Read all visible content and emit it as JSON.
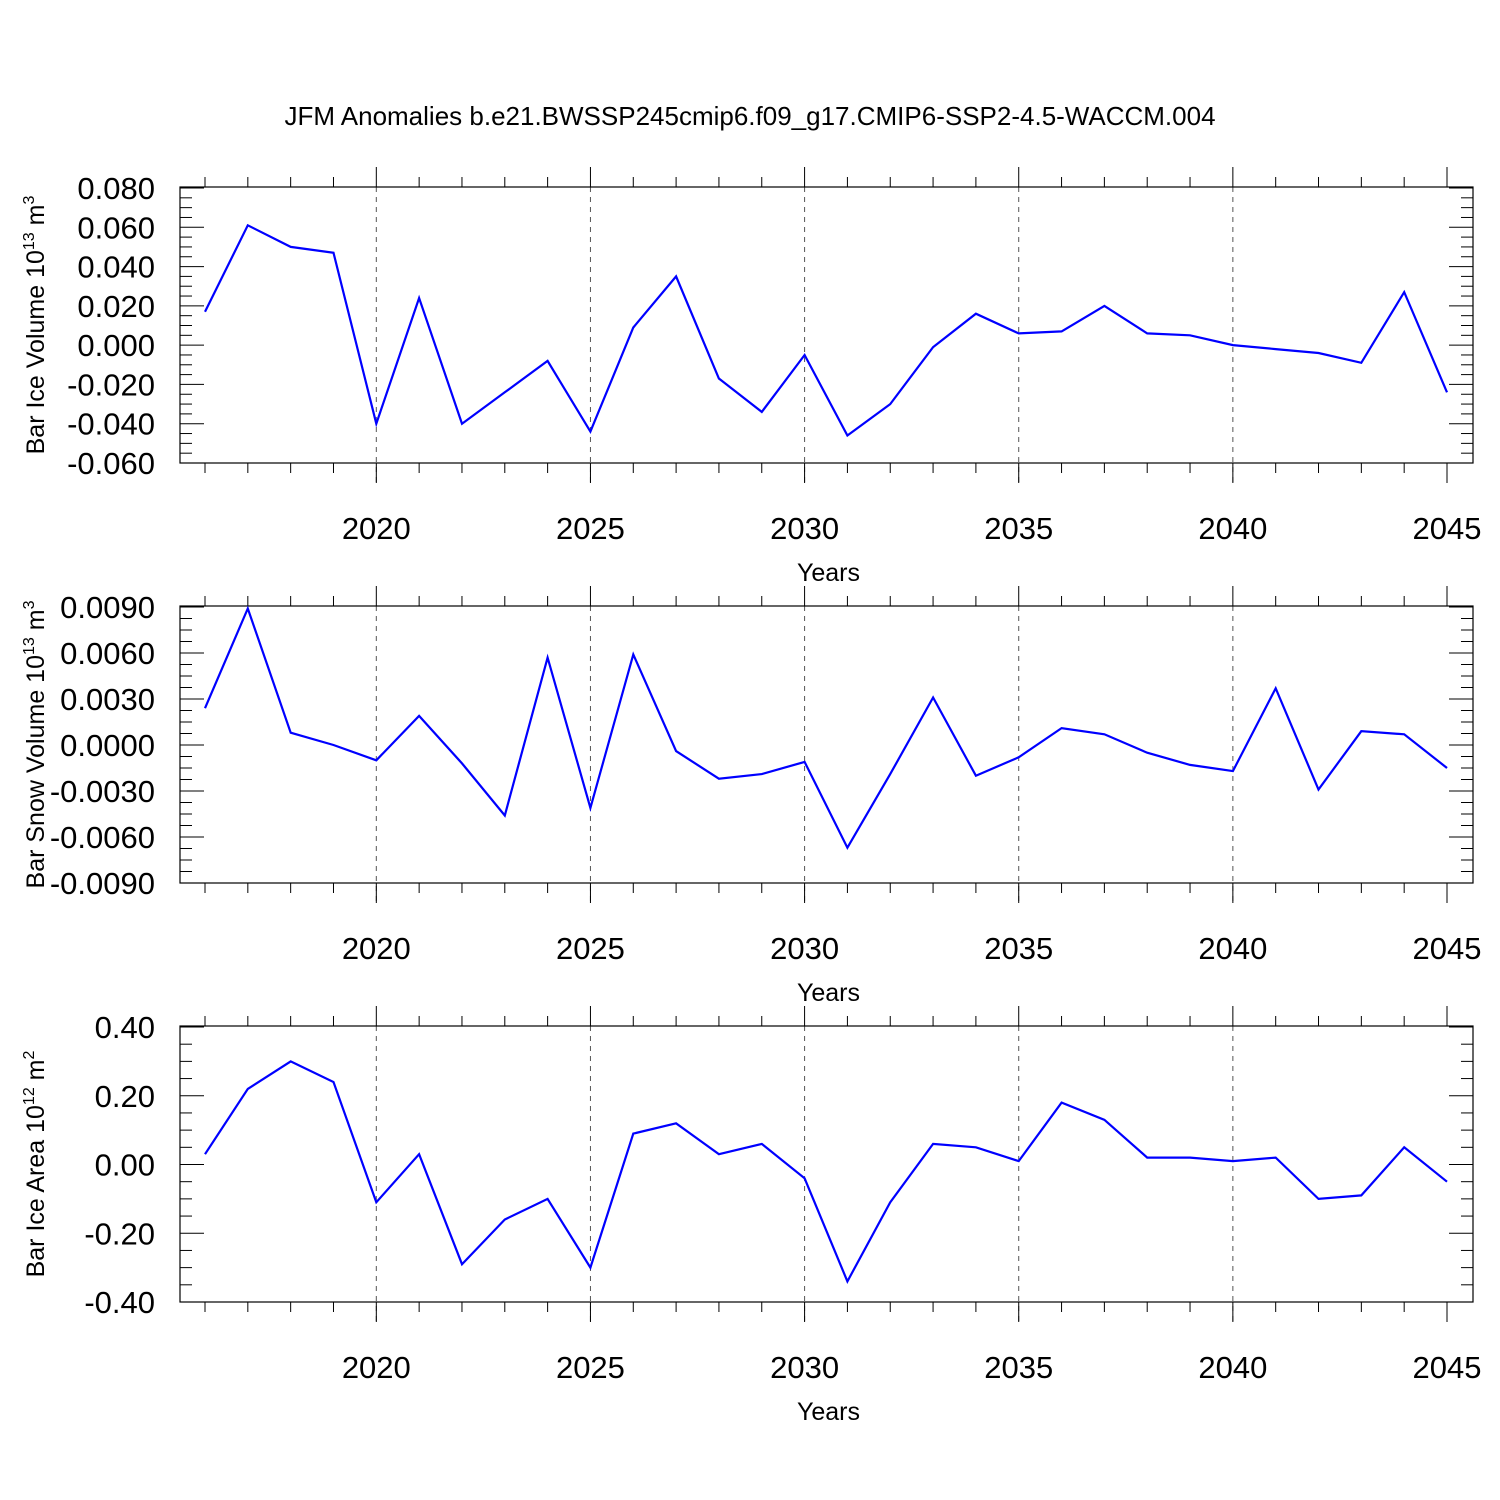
{
  "title": "JFM Anomalies b.e21.BWSSP245cmip6.f09_g17.CMIP6-SSP2-4.5-WACCM.004",
  "line_color": "#0000ff",
  "chart_data": [
    {
      "type": "line",
      "ylabel_main": "Bar Ice Volume 10",
      "ylabel_exp": "13",
      "ylabel_unit": "m",
      "ylabel_unit_exp": "3",
      "xlabel": "Years",
      "xlim": [
        2016,
        2045
      ],
      "ylim": [
        -0.06,
        0.08
      ],
      "grid": "x-dashed",
      "xticks": [
        "2020",
        "2025",
        "2030",
        "2035",
        "2040",
        "2045"
      ],
      "yticks": [
        "0.080",
        "0.060",
        "0.040",
        "0.020",
        "0.000",
        "-0.020",
        "-0.040",
        "-0.060"
      ],
      "x": [
        2016,
        2017,
        2018,
        2019,
        2020,
        2021,
        2022,
        2023,
        2024,
        2025,
        2026,
        2027,
        2028,
        2029,
        2030,
        2031,
        2032,
        2033,
        2034,
        2035,
        2036,
        2037,
        2038,
        2039,
        2040,
        2041,
        2042,
        2043,
        2044,
        2045
      ],
      "values": [
        0.017,
        0.061,
        0.05,
        0.047,
        -0.04,
        0.024,
        -0.04,
        -0.024,
        -0.008,
        -0.044,
        0.009,
        0.035,
        -0.017,
        -0.034,
        -0.005,
        -0.046,
        -0.03,
        -0.001,
        0.016,
        0.006,
        0.007,
        0.02,
        0.006,
        0.005,
        0.0,
        -0.002,
        -0.004,
        -0.009,
        0.027,
        -0.024
      ]
    },
    {
      "type": "line",
      "ylabel_main": "Bar Snow Volume 10",
      "ylabel_exp": "13",
      "ylabel_unit": "m",
      "ylabel_unit_exp": "3",
      "xlabel": "Years",
      "xlim": [
        2016,
        2045
      ],
      "ylim": [
        -0.009,
        0.009
      ],
      "grid": "x-dashed",
      "xticks": [
        "2020",
        "2025",
        "2030",
        "2035",
        "2040",
        "2045"
      ],
      "yticks": [
        "0.0090",
        "0.0060",
        "0.0030",
        "0.0000",
        "-0.0030",
        "-0.0060",
        "-0.0090"
      ],
      "x": [
        2016,
        2017,
        2018,
        2019,
        2020,
        2021,
        2022,
        2023,
        2024,
        2025,
        2026,
        2027,
        2028,
        2029,
        2030,
        2031,
        2032,
        2033,
        2034,
        2035,
        2036,
        2037,
        2038,
        2039,
        2040,
        2041,
        2042,
        2043,
        2044,
        2045
      ],
      "values": [
        0.0024,
        0.0089,
        0.0008,
        0.0,
        -0.001,
        0.0019,
        -0.0012,
        -0.0046,
        0.0057,
        -0.0041,
        0.0059,
        -0.0004,
        -0.0022,
        -0.0019,
        -0.0011,
        -0.0067,
        -0.0019,
        0.0031,
        -0.002,
        -0.0008,
        0.0011,
        0.0007,
        -0.0005,
        -0.0013,
        -0.0017,
        0.0037,
        -0.0029,
        0.0009,
        0.0007,
        -0.0015
      ]
    },
    {
      "type": "line",
      "ylabel_main": "Bar Ice Area 10",
      "ylabel_exp": "12",
      "ylabel_unit": "m",
      "ylabel_unit_exp": "2",
      "xlabel": "Years",
      "xlim": [
        2016,
        2045
      ],
      "ylim": [
        -0.4,
        0.4
      ],
      "grid": "x-dashed",
      "xticks": [
        "2020",
        "2025",
        "2030",
        "2035",
        "2040",
        "2045"
      ],
      "yticks": [
        "0.40",
        "0.20",
        "0.00",
        "-0.20",
        "-0.40"
      ],
      "x": [
        2016,
        2017,
        2018,
        2019,
        2020,
        2021,
        2022,
        2023,
        2024,
        2025,
        2026,
        2027,
        2028,
        2029,
        2030,
        2031,
        2032,
        2033,
        2034,
        2035,
        2036,
        2037,
        2038,
        2039,
        2040,
        2041,
        2042,
        2043,
        2044,
        2045
      ],
      "values": [
        0.03,
        0.22,
        0.3,
        0.24,
        -0.11,
        0.03,
        -0.29,
        -0.16,
        -0.1,
        -0.3,
        0.09,
        0.12,
        0.03,
        0.06,
        -0.04,
        -0.34,
        -0.11,
        0.06,
        0.05,
        0.01,
        0.18,
        0.13,
        0.02,
        0.02,
        0.01,
        0.02,
        -0.1,
        -0.09,
        0.05,
        -0.05
      ]
    }
  ]
}
